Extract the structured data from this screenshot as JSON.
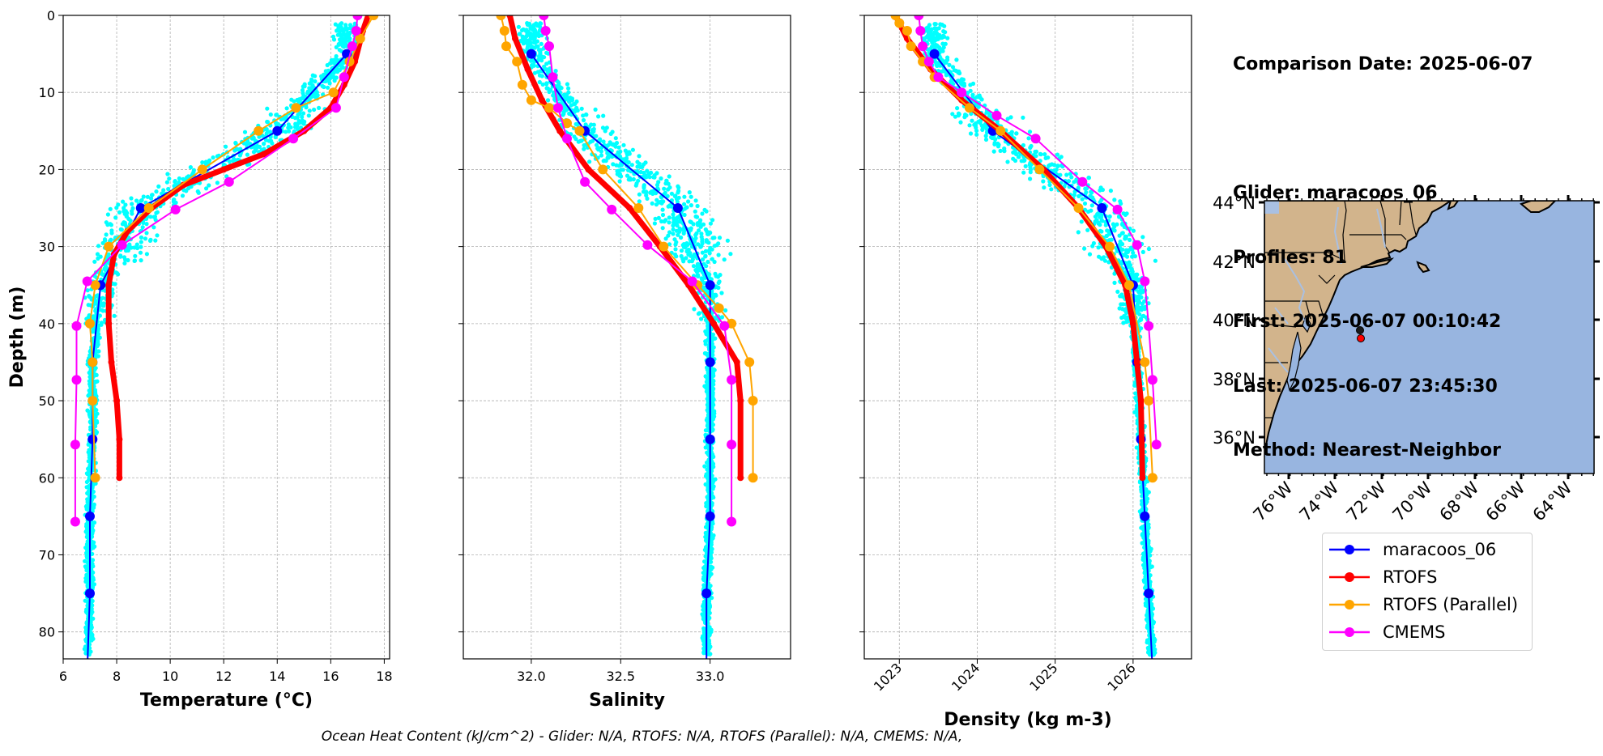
{
  "chart_data": [
    {
      "type": "line",
      "panel": "temperature",
      "xlabel": "Temperature (°C)",
      "ylabel": "Depth (m)",
      "xlim": [
        6,
        18.2
      ],
      "ylim": [
        83.5,
        0
      ],
      "xticks": [
        6,
        8,
        10,
        12,
        14,
        16,
        18
      ],
      "yticks": [
        0,
        10,
        20,
        30,
        40,
        50,
        60,
        70,
        80
      ],
      "grid": true,
      "series": [
        {
          "name": "maracoos_06",
          "color": "#0000ff",
          "x": [
            16.6,
            14.0,
            8.9,
            7.4,
            7.1,
            7.1,
            7.0,
            7.0,
            6.9
          ],
          "y": [
            5,
            15,
            25,
            35,
            45,
            55,
            65,
            75,
            85
          ]
        },
        {
          "name": "RTOFS",
          "color": "#ff0000",
          "x": [
            17.4,
            17.2,
            16.9,
            16.5,
            16.0,
            15.0,
            13.5,
            12.0,
            10.5,
            9.3,
            8.4,
            7.9,
            7.7,
            7.7,
            7.8,
            8.0,
            8.1,
            8.1
          ],
          "y": [
            0,
            2,
            6,
            9,
            12,
            15,
            18,
            20,
            22,
            25,
            28,
            31,
            35,
            40,
            45,
            50,
            55,
            60
          ]
        },
        {
          "name": "RTOFS (Parallel)",
          "color": "#ffa500",
          "x": [
            17.6,
            17.1,
            16.7,
            16.1,
            14.7,
            13.3,
            11.2,
            9.2,
            7.7,
            7.2,
            7.0,
            7.1,
            7.1,
            7.2
          ],
          "y": [
            0,
            3,
            6,
            10,
            12,
            15,
            20,
            25,
            30,
            35,
            40,
            45,
            50,
            60
          ]
        },
        {
          "name": "CMEMS",
          "color": "#ff00ff",
          "x": [
            17.0,
            16.95,
            16.8,
            16.5,
            16.2,
            14.6,
            12.2,
            10.2,
            8.2,
            6.9,
            6.5,
            6.5,
            6.45,
            6.45
          ],
          "y": [
            0,
            2,
            4,
            8,
            12,
            16,
            21.6,
            25.2,
            29.8,
            34.5,
            40.3,
            47.3,
            55.7,
            65.7
          ]
        }
      ]
    },
    {
      "type": "line",
      "panel": "salinity",
      "xlabel": "Salinity",
      "xlim": [
        31.62,
        33.45
      ],
      "ylim": [
        83.5,
        0
      ],
      "xticks": [
        32.0,
        32.5,
        33.0
      ],
      "grid": true,
      "series": [
        {
          "name": "maracoos_06",
          "color": "#0000ff",
          "x": [
            32.0,
            32.3,
            32.82,
            33.0,
            33.0,
            33.0,
            33.0,
            32.98,
            32.98
          ],
          "y": [
            5,
            15,
            25,
            35,
            45,
            55,
            65,
            75,
            85
          ]
        },
        {
          "name": "RTOFS",
          "color": "#ff0000",
          "x": [
            31.88,
            31.91,
            31.98,
            32.06,
            32.16,
            32.32,
            32.55,
            32.72,
            32.88,
            33.02,
            33.15,
            33.17,
            33.17
          ],
          "y": [
            0,
            3,
            7,
            11,
            15,
            20,
            25,
            30,
            35,
            40,
            45,
            50,
            60
          ]
        },
        {
          "name": "RTOFS (Parallel)",
          "color": "#ffa500",
          "x": [
            31.83,
            31.85,
            31.86,
            31.92,
            31.95,
            32.0,
            32.1,
            32.2,
            32.27,
            32.4,
            32.6,
            32.74,
            32.93,
            33.05,
            33.12,
            33.22,
            33.24,
            33.24
          ],
          "y": [
            0,
            2,
            4,
            6,
            9,
            11,
            12,
            14,
            15,
            20,
            25,
            30,
            35,
            38,
            40,
            45,
            50,
            60
          ]
        },
        {
          "name": "CMEMS",
          "color": "#ff00ff",
          "x": [
            32.07,
            32.08,
            32.1,
            32.12,
            32.15,
            32.2,
            32.3,
            32.45,
            32.65,
            32.9,
            33.08,
            33.12,
            33.12,
            33.12
          ],
          "y": [
            0,
            2,
            4,
            8,
            12,
            16,
            21.6,
            25.2,
            29.8,
            34.5,
            40.3,
            47.3,
            55.7,
            65.7
          ]
        }
      ]
    },
    {
      "type": "line",
      "panel": "density",
      "xlabel": "Density (kg m-3)",
      "xlim": [
        1022.55,
        1026.75
      ],
      "ylim": [
        83.5,
        0
      ],
      "xticks": [
        1023,
        1024,
        1025,
        1026
      ],
      "grid": true,
      "series": [
        {
          "name": "maracoos_06",
          "color": "#0000ff",
          "x": [
            1023.45,
            1024.2,
            1025.6,
            1026.0,
            1026.05,
            1026.1,
            1026.15,
            1026.2,
            1026.25
          ],
          "y": [
            5,
            15,
            25,
            35,
            45,
            55,
            65,
            75,
            85
          ]
        },
        {
          "name": "RTOFS",
          "color": "#ff0000",
          "x": [
            1022.95,
            1023.1,
            1023.4,
            1023.8,
            1024.3,
            1024.85,
            1025.3,
            1025.65,
            1025.9,
            1026.0,
            1026.05,
            1026.1,
            1026.12
          ],
          "y": [
            0,
            3,
            7,
            11,
            15,
            20,
            25,
            30,
            35,
            40,
            45,
            50,
            60
          ]
        },
        {
          "name": "RTOFS (Parallel)",
          "color": "#ffa500",
          "x": [
            1022.95,
            1023.0,
            1023.1,
            1023.15,
            1023.3,
            1023.45,
            1023.9,
            1024.3,
            1024.8,
            1025.3,
            1025.7,
            1025.95,
            1026.15,
            1026.2,
            1026.25
          ],
          "y": [
            0,
            1,
            2,
            4,
            6,
            8,
            12,
            15,
            20,
            25,
            30,
            35,
            45,
            50,
            60
          ]
        },
        {
          "name": "CMEMS",
          "color": "#ff00ff",
          "x": [
            1023.25,
            1023.27,
            1023.3,
            1023.38,
            1023.5,
            1023.8,
            1024.25,
            1024.75,
            1025.35,
            1025.8,
            1026.05,
            1026.15,
            1026.2,
            1026.25,
            1026.3
          ],
          "y": [
            0,
            2,
            4,
            6,
            8,
            10,
            13,
            16,
            21.6,
            25.2,
            29.8,
            34.5,
            40.3,
            47.3,
            55.7
          ]
        }
      ]
    }
  ],
  "glider_scatter_color": "#00ffff",
  "info": {
    "date": "Comparison Date: 2025-06-07",
    "glider": "Glider: maracoos_06",
    "profiles": "Profiles: 81",
    "first": "First: 2025-06-07 00:10:42",
    "last": "Last: 2025-06-07 23:45:30",
    "method": "Method: Nearest-Neighbor"
  },
  "map": {
    "lat_labels": [
      "44°N",
      "42°N",
      "40°N",
      "38°N",
      "36°N"
    ],
    "lon_labels": [
      "76°W",
      "74°W",
      "72°W",
      "70°W",
      "68°W",
      "66°W",
      "64°W"
    ],
    "land_color": "#d2b48c",
    "ocean_color": "#98b5e0",
    "glider_marker_color": "#ff0000"
  },
  "legend": [
    {
      "label": "maracoos_06",
      "color": "#0000ff"
    },
    {
      "label": "RTOFS",
      "color": "#ff0000"
    },
    {
      "label": "RTOFS (Parallel)",
      "color": "#ffa500"
    },
    {
      "label": "CMEMS",
      "color": "#ff00ff"
    }
  ],
  "footer": "Ocean Heat Content (kJ/cm^2) - Glider: N/A,  RTOFS: N/A,  RTOFS (Parallel): N/A,  CMEMS: N/A,"
}
